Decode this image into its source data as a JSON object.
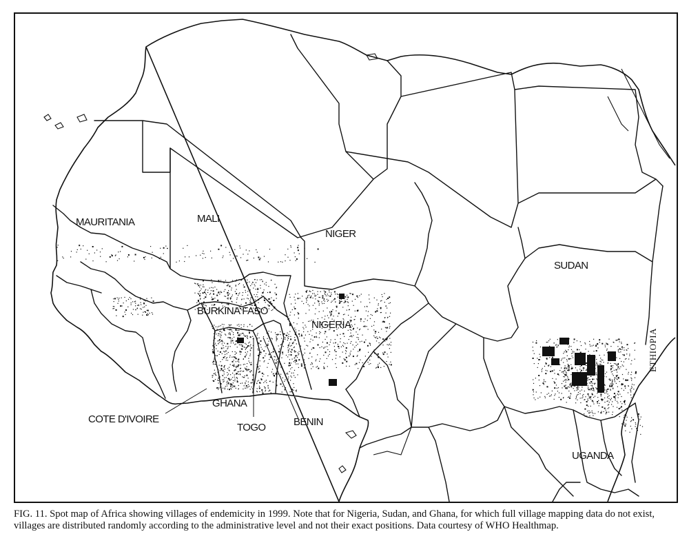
{
  "map": {
    "labels": {
      "mauritania": "MAURITANIA",
      "mali": "MALI",
      "niger": "NIGER",
      "sudan": "SUDAN",
      "burkina_faso": "BURKINA FASO",
      "nigeria": "NIGERIA",
      "ethiopia": "ETHIOPIA",
      "ghana": "GHANA",
      "cote_divoire": "COTE D'IVOIRE",
      "togo": "TOGO",
      "benin": "BENIN",
      "uganda": "UGANDA"
    },
    "colors": {
      "ink": "#111111",
      "background": "#ffffff"
    }
  },
  "caption": "FIG. 11. Spot map of Africa showing villages of endemicity in 1999. Note that for Nigeria, Sudan, and Ghana, for which full village mapping data do not exist, villages are distributed randomly according to the administrative level and not their exact positions. Data courtesy of WHO Healthmap."
}
